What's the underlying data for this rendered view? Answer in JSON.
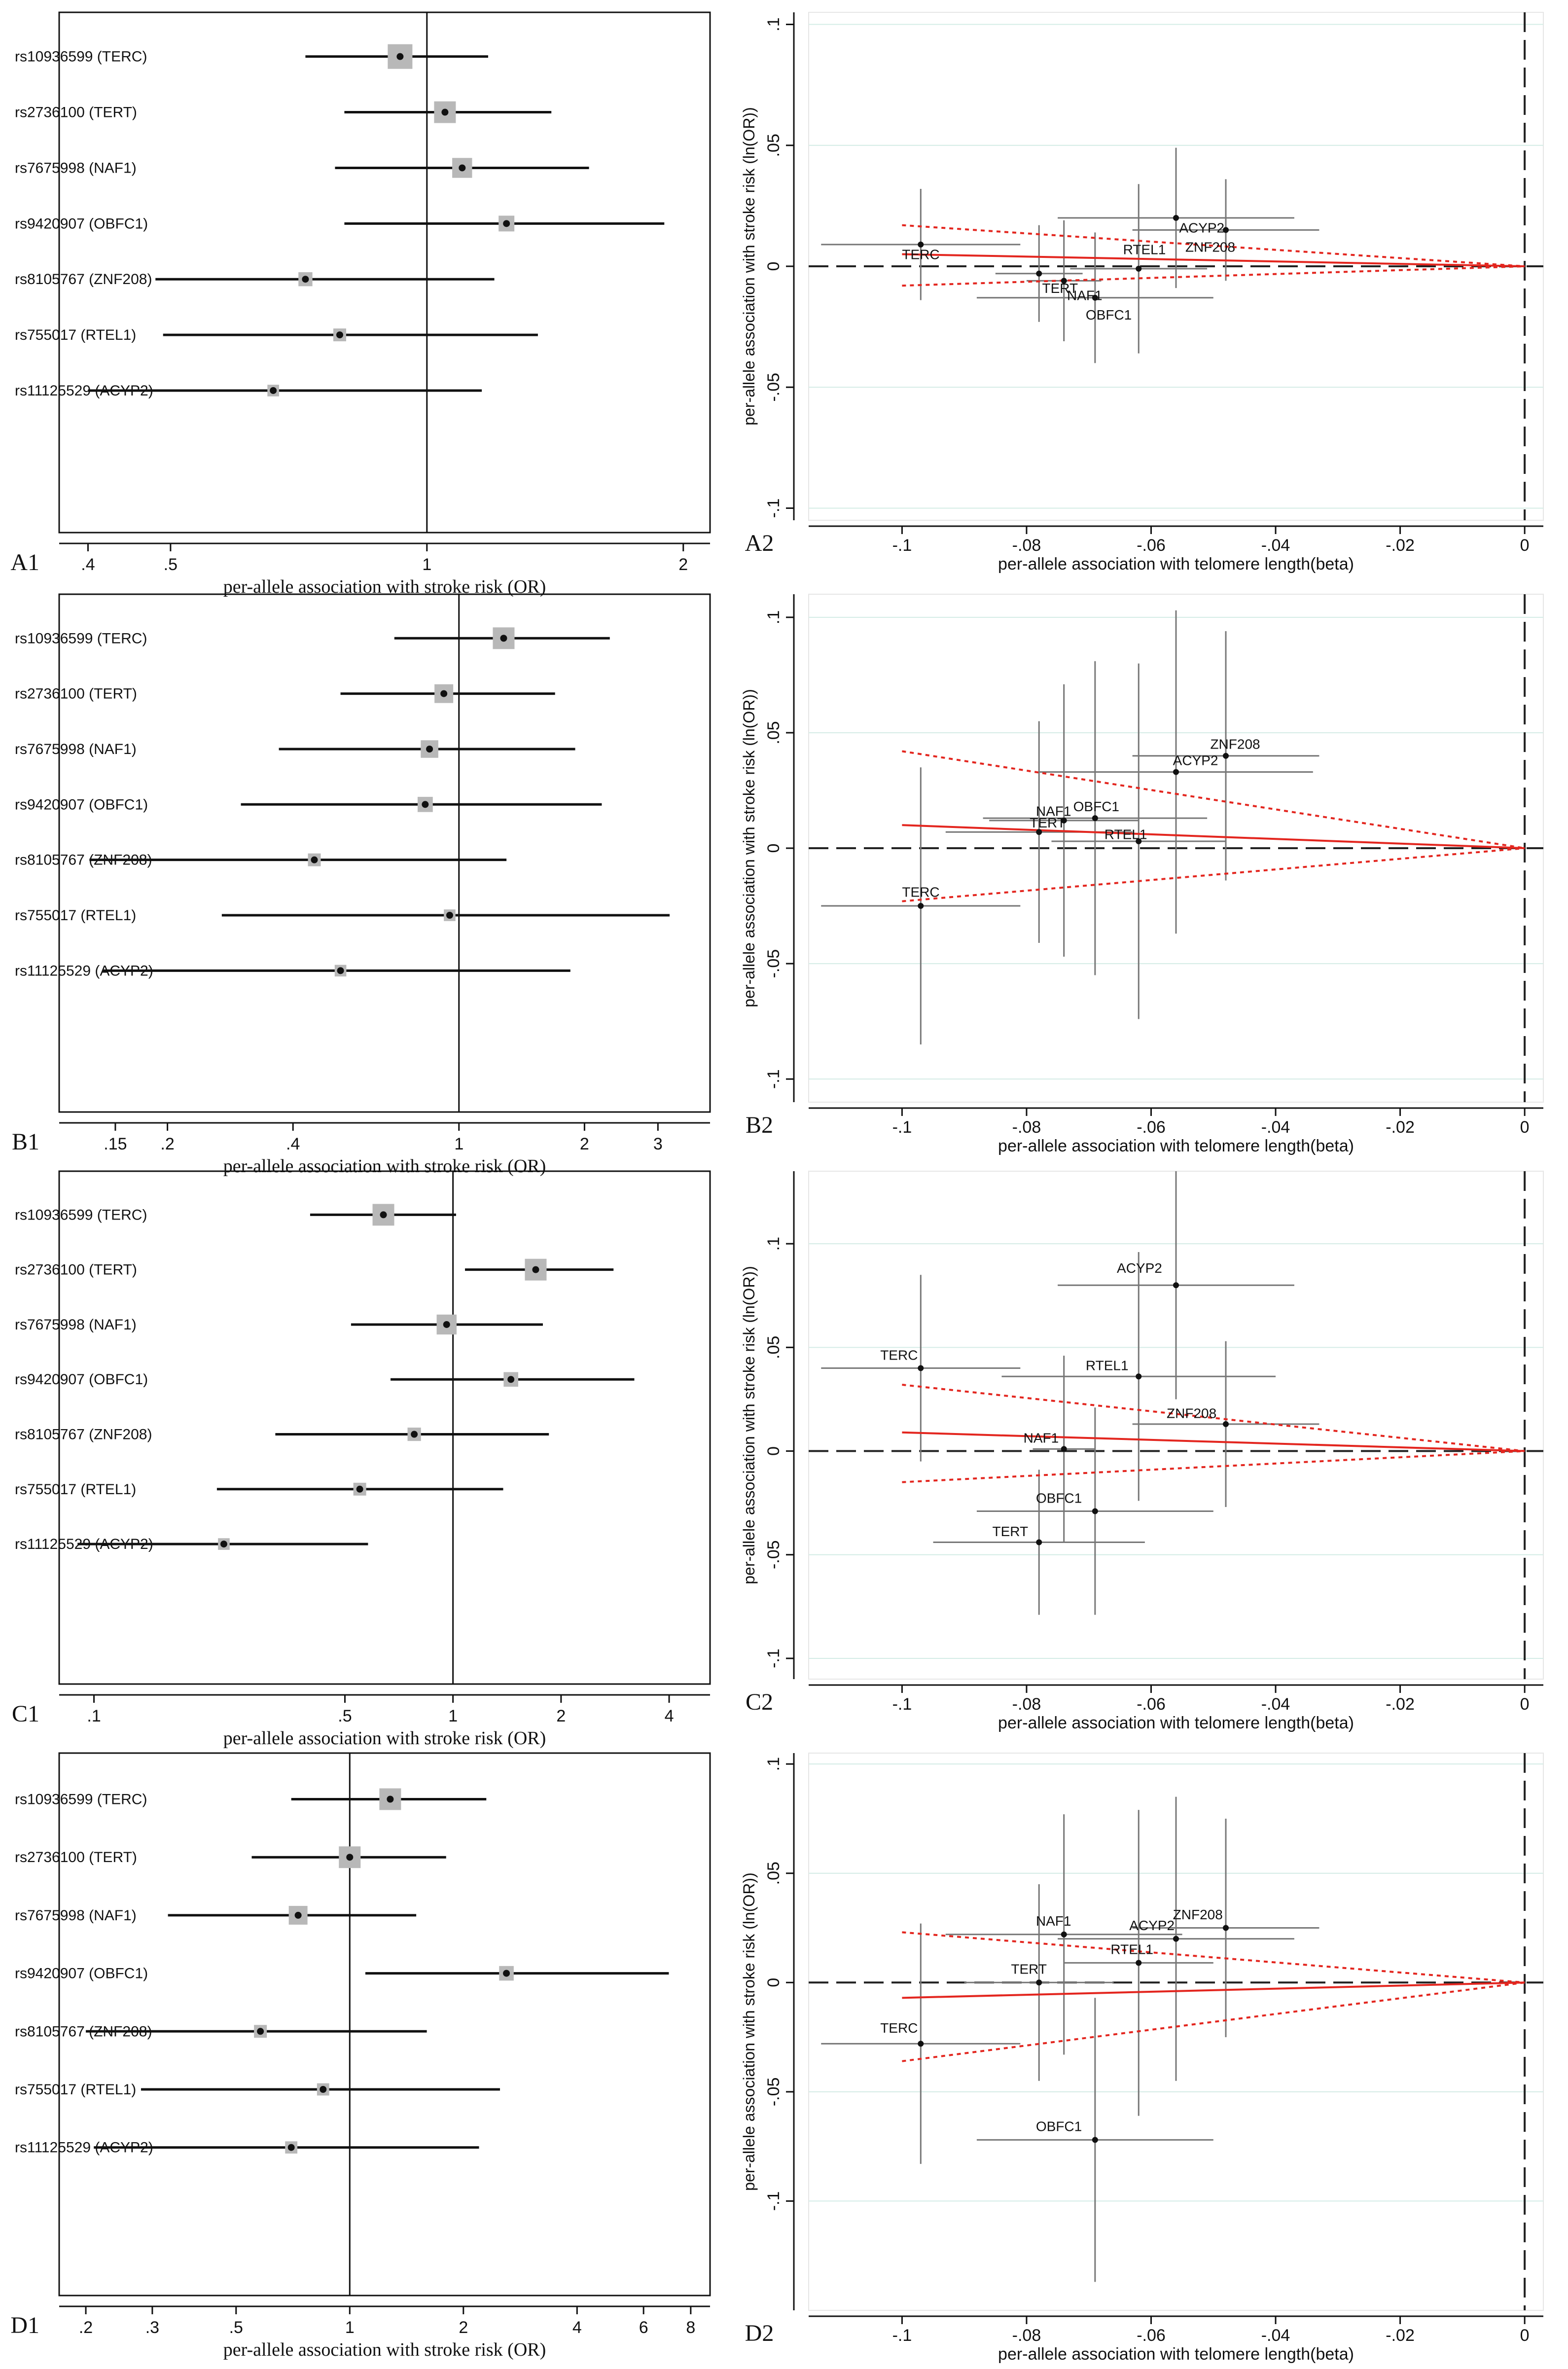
{
  "chart_data": [
    {
      "type": "forest",
      "panel": "A1",
      "xlabel": "per-allele association with stroke risk (OR)",
      "xscale": "log",
      "xlim": [
        0.37,
        2.15
      ],
      "ticks": [
        {
          "v": 0.4,
          "label": ".4"
        },
        {
          "v": 0.5,
          "label": ".5"
        },
        {
          "v": 1,
          "label": "1"
        },
        {
          "v": 2,
          "label": "2"
        }
      ],
      "rows": [
        {
          "snp": "rs10936599 (TERC)",
          "or": 0.93,
          "lo": 0.72,
          "hi": 1.18,
          "w": 3
        },
        {
          "snp": "rs2736100 (TERT)",
          "or": 1.05,
          "lo": 0.8,
          "hi": 1.4,
          "w": 2.5
        },
        {
          "snp": "rs7675998 (NAF1)",
          "or": 1.1,
          "lo": 0.78,
          "hi": 1.55,
          "w": 2.2
        },
        {
          "snp": "rs9420907 (OBFC1)",
          "or": 1.24,
          "lo": 0.8,
          "hi": 1.9,
          "w": 1.5
        },
        {
          "snp": "rs8105767 (ZNF208)",
          "or": 0.72,
          "lo": 0.48,
          "hi": 1.2,
          "w": 1.2
        },
        {
          "snp": "rs755017 (RTEL1)",
          "or": 0.79,
          "lo": 0.49,
          "hi": 1.35,
          "w": 1
        },
        {
          "snp": "rs11125529 (ACYP2)",
          "or": 0.66,
          "lo": 0.4,
          "hi": 1.16,
          "w": 0.8
        }
      ]
    },
    {
      "type": "scatter",
      "panel": "A2",
      "xlabel": "per-allele association with telomere length(beta)",
      "ylabel": "per-allele association with stroke risk (ln(OR))",
      "xlim": [
        -0.115,
        0.003
      ],
      "ylim": [
        -0.105,
        0.105
      ],
      "xticks": [
        {
          "v": -0.1,
          "label": "-.1"
        },
        {
          "v": -0.08,
          "label": "-.08"
        },
        {
          "v": -0.06,
          "label": "-.06"
        },
        {
          "v": -0.04,
          "label": "-.04"
        },
        {
          "v": -0.02,
          "label": "-.02"
        },
        {
          "v": 0,
          "label": "0"
        }
      ],
      "yticks": [
        {
          "v": -0.1,
          "label": "-.1"
        },
        {
          "v": -0.05,
          "label": "-.05"
        },
        {
          "v": 0,
          "label": "0"
        },
        {
          "v": 0.05,
          "label": ".05"
        },
        {
          "v": 0.1,
          "label": ".1"
        }
      ],
      "slope": -0.05,
      "ci_slope_lo": -0.17,
      "ci_slope_hi": 0.08,
      "points": [
        {
          "gene": "TERC",
          "x": -0.097,
          "y": 0.009,
          "xse": 0.016,
          "yse": 0.023,
          "lx": -0.1,
          "ly": 0.003
        },
        {
          "gene": "TERT",
          "x": -0.078,
          "y": -0.003,
          "xse": 0.007,
          "yse": 0.02,
          "lx": -0.0775,
          "ly": -0.011
        },
        {
          "gene": "NAF1",
          "x": -0.074,
          "y": -0.006,
          "xse": 0.006,
          "yse": 0.025,
          "lx": -0.0735,
          "ly": -0.014
        },
        {
          "gene": "OBFC1",
          "x": -0.069,
          "y": -0.013,
          "xse": 0.019,
          "yse": 0.027,
          "lx": -0.0705,
          "ly": -0.022
        },
        {
          "gene": "RTEL1",
          "x": -0.062,
          "y": -0.001,
          "xse": 0.011,
          "yse": 0.035,
          "lx": -0.0645,
          "ly": 0.005
        },
        {
          "gene": "ACYP2",
          "x": -0.056,
          "y": 0.02,
          "xse": 0.019,
          "yse": 0.029,
          "lx": -0.0555,
          "ly": 0.014
        },
        {
          "gene": "ZNF208",
          "x": -0.048,
          "y": 0.015,
          "xse": 0.015,
          "yse": 0.021,
          "lx": -0.0545,
          "ly": 0.006
        }
      ]
    },
    {
      "type": "forest",
      "panel": "B1",
      "xlabel": "per-allele association with stroke risk (OR)",
      "xscale": "log",
      "xlim": [
        0.11,
        4.0
      ],
      "ticks": [
        {
          "v": 0.15,
          "label": ".15"
        },
        {
          "v": 0.2,
          "label": ".2"
        },
        {
          "v": 0.4,
          "label": ".4"
        },
        {
          "v": 1,
          "label": "1"
        },
        {
          "v": 2,
          "label": "2"
        },
        {
          "v": 3,
          "label": "3"
        }
      ],
      "rows": [
        {
          "snp": "rs10936599 (TERC)",
          "or": 1.28,
          "lo": 0.7,
          "hi": 2.3,
          "w": 2.5
        },
        {
          "snp": "rs2736100 (TERT)",
          "or": 0.92,
          "lo": 0.52,
          "hi": 1.7,
          "w": 2
        },
        {
          "snp": "rs7675998 (NAF1)",
          "or": 0.85,
          "lo": 0.37,
          "hi": 1.9,
          "w": 1.8
        },
        {
          "snp": "rs9420907 (OBFC1)",
          "or": 0.83,
          "lo": 0.3,
          "hi": 2.2,
          "w": 1.4
        },
        {
          "snp": "rs8105767 (ZNF208)",
          "or": 0.45,
          "lo": 0.13,
          "hi": 1.3,
          "w": 1
        },
        {
          "snp": "rs755017 (RTEL1)",
          "or": 0.95,
          "lo": 0.27,
          "hi": 3.2,
          "w": 0.8
        },
        {
          "snp": "rs11125529 (ACYP2)",
          "or": 0.52,
          "lo": 0.14,
          "hi": 1.85,
          "w": 0.8
        }
      ]
    },
    {
      "type": "scatter",
      "panel": "B2",
      "xlabel": "per-allele association with telomere length(beta)",
      "ylabel": "per-allele association with stroke risk (ln(OR))",
      "xlim": [
        -0.115,
        0.003
      ],
      "ylim": [
        -0.11,
        0.11
      ],
      "xticks": [
        {
          "v": -0.1,
          "label": "-.1"
        },
        {
          "v": -0.08,
          "label": "-.08"
        },
        {
          "v": -0.06,
          "label": "-.06"
        },
        {
          "v": -0.04,
          "label": "-.04"
        },
        {
          "v": -0.02,
          "label": "-.02"
        },
        {
          "v": 0,
          "label": "0"
        }
      ],
      "yticks": [
        {
          "v": -0.1,
          "label": "-.1"
        },
        {
          "v": -0.05,
          "label": "-.05"
        },
        {
          "v": 0,
          "label": "0"
        },
        {
          "v": 0.05,
          "label": ".05"
        },
        {
          "v": 0.1,
          "label": ".1"
        }
      ],
      "slope": -0.1,
      "ci_slope_lo": -0.42,
      "ci_slope_hi": 0.23,
      "points": [
        {
          "gene": "TERC",
          "x": -0.097,
          "y": -0.025,
          "xse": 0.016,
          "yse": 0.06,
          "lx": -0.1,
          "ly": -0.021
        },
        {
          "gene": "TERT",
          "x": -0.078,
          "y": 0.007,
          "xse": 0.015,
          "yse": 0.048,
          "lx": -0.0795,
          "ly": 0.009
        },
        {
          "gene": "NAF1",
          "x": -0.074,
          "y": 0.012,
          "xse": 0.012,
          "yse": 0.059,
          "lx": -0.0785,
          "ly": 0.014
        },
        {
          "gene": "OBFC1",
          "x": -0.069,
          "y": 0.013,
          "xse": 0.018,
          "yse": 0.068,
          "lx": -0.0725,
          "ly": 0.016
        },
        {
          "gene": "RTEL1",
          "x": -0.062,
          "y": 0.003,
          "xse": 0.014,
          "yse": 0.077,
          "lx": -0.0675,
          "ly": 0.004
        },
        {
          "gene": "ACYP2",
          "x": -0.056,
          "y": 0.033,
          "xse": 0.022,
          "yse": 0.07,
          "lx": -0.0565,
          "ly": 0.036
        },
        {
          "gene": "ZNF208",
          "x": -0.048,
          "y": 0.04,
          "xse": 0.015,
          "yse": 0.054,
          "lx": -0.0505,
          "ly": 0.043
        }
      ]
    },
    {
      "type": "forest",
      "panel": "C1",
      "xlabel": "per-allele association with stroke risk (OR)",
      "xscale": "log",
      "xlim": [
        0.08,
        5.2
      ],
      "ticks": [
        {
          "v": 0.1,
          "label": ".1"
        },
        {
          "v": 0.5,
          "label": ".5"
        },
        {
          "v": 1,
          "label": "1"
        },
        {
          "v": 2,
          "label": "2"
        },
        {
          "v": 4,
          "label": "4"
        }
      ],
      "rows": [
        {
          "snp": "rs10936599 (TERC)",
          "or": 0.64,
          "lo": 0.4,
          "hi": 1.02,
          "w": 2.5
        },
        {
          "snp": "rs2736100 (TERT)",
          "or": 1.7,
          "lo": 1.08,
          "hi": 2.8,
          "w": 2.5
        },
        {
          "snp": "rs7675998 (NAF1)",
          "or": 0.96,
          "lo": 0.52,
          "hi": 1.78,
          "w": 2.2
        },
        {
          "snp": "rs9420907 (OBFC1)",
          "or": 1.45,
          "lo": 0.67,
          "hi": 3.2,
          "w": 1.3
        },
        {
          "snp": "rs8105767 (ZNF208)",
          "or": 0.78,
          "lo": 0.32,
          "hi": 1.85,
          "w": 1.1
        },
        {
          "snp": "rs755017 (RTEL1)",
          "or": 0.55,
          "lo": 0.22,
          "hi": 1.38,
          "w": 1
        },
        {
          "snp": "rs11125529 (ACYP2)",
          "or": 0.23,
          "lo": 0.09,
          "hi": 0.58,
          "w": 0.8
        }
      ]
    },
    {
      "type": "scatter",
      "panel": "C2",
      "xlabel": "per-allele association with telomere length(beta)",
      "ylabel": "per-allele association with stroke risk (ln(OR))",
      "xlim": [
        -0.115,
        0.003
      ],
      "ylim": [
        -0.11,
        0.135
      ],
      "xticks": [
        {
          "v": -0.1,
          "label": "-.1"
        },
        {
          "v": -0.08,
          "label": "-.08"
        },
        {
          "v": -0.06,
          "label": "-.06"
        },
        {
          "v": -0.04,
          "label": "-.04"
        },
        {
          "v": -0.02,
          "label": "-.02"
        },
        {
          "v": 0,
          "label": "0"
        }
      ],
      "yticks": [
        {
          "v": -0.1,
          "label": "-.1"
        },
        {
          "v": -0.05,
          "label": "-.05"
        },
        {
          "v": 0,
          "label": "0"
        },
        {
          "v": 0.05,
          "label": ".05"
        },
        {
          "v": 0.1,
          "label": ".1"
        }
      ],
      "slope": -0.09,
      "ci_slope_lo": -0.32,
      "ci_slope_hi": 0.15,
      "points": [
        {
          "gene": "TERC",
          "x": -0.097,
          "y": 0.04,
          "xse": 0.016,
          "yse": 0.045,
          "lx": -0.1035,
          "ly": 0.044
        },
        {
          "gene": "TERT",
          "x": -0.078,
          "y": -0.044,
          "xse": 0.017,
          "yse": 0.035,
          "lx": -0.0855,
          "ly": -0.041
        },
        {
          "gene": "NAF1",
          "x": -0.074,
          "y": 0.001,
          "xse": 0.005,
          "yse": 0.045,
          "lx": -0.0805,
          "ly": 0.004
        },
        {
          "gene": "OBFC1",
          "x": -0.069,
          "y": -0.029,
          "xse": 0.019,
          "yse": 0.05,
          "lx": -0.0785,
          "ly": -0.025
        },
        {
          "gene": "RTEL1",
          "x": -0.062,
          "y": 0.036,
          "xse": 0.022,
          "yse": 0.06,
          "lx": -0.0705,
          "ly": 0.039
        },
        {
          "gene": "ACYP2",
          "x": -0.056,
          "y": 0.08,
          "xse": 0.019,
          "yse": 0.055,
          "lx": -0.0655,
          "ly": 0.086
        },
        {
          "gene": "ZNF208",
          "x": -0.048,
          "y": 0.013,
          "xse": 0.015,
          "yse": 0.04,
          "lx": -0.0575,
          "ly": 0.016
        }
      ]
    },
    {
      "type": "forest",
      "panel": "D1",
      "xlabel": "per-allele association with stroke risk (OR)",
      "xscale": "log",
      "xlim": [
        0.17,
        9.0
      ],
      "ticks": [
        {
          "v": 0.2,
          "label": ".2"
        },
        {
          "v": 0.3,
          "label": ".3"
        },
        {
          "v": 0.5,
          "label": ".5"
        },
        {
          "v": 1,
          "label": "1"
        },
        {
          "v": 2,
          "label": "2"
        },
        {
          "v": 4,
          "label": "4"
        },
        {
          "v": 6,
          "label": "6"
        },
        {
          "v": 8,
          "label": "8"
        }
      ],
      "rows": [
        {
          "snp": "rs10936599 (TERC)",
          "or": 1.28,
          "lo": 0.7,
          "hi": 2.3,
          "w": 2.5
        },
        {
          "snp": "rs2736100 (TERT)",
          "or": 1.0,
          "lo": 0.55,
          "hi": 1.8,
          "w": 2.5
        },
        {
          "snp": "rs7675998 (NAF1)",
          "or": 0.73,
          "lo": 0.33,
          "hi": 1.5,
          "w": 2
        },
        {
          "snp": "rs9420907 (OBFC1)",
          "or": 2.6,
          "lo": 1.1,
          "hi": 7.0,
          "w": 1.3
        },
        {
          "snp": "rs8105767 (ZNF208)",
          "or": 0.58,
          "lo": 0.2,
          "hi": 1.6,
          "w": 1
        },
        {
          "snp": "rs755017 (RTEL1)",
          "or": 0.85,
          "lo": 0.28,
          "hi": 2.5,
          "w": 0.9
        },
        {
          "snp": "rs11125529 (ACYP2)",
          "or": 0.7,
          "lo": 0.21,
          "hi": 2.2,
          "w": 0.9
        }
      ]
    },
    {
      "type": "scatter",
      "panel": "D2",
      "xlabel": "per-allele association with telomere length(beta)",
      "ylabel": "per-allele association with stroke risk (ln(OR))",
      "xlim": [
        -0.115,
        0.003
      ],
      "ylim": [
        -0.15,
        0.105
      ],
      "xticks": [
        {
          "v": -0.1,
          "label": "-.1"
        },
        {
          "v": -0.08,
          "label": "-.08"
        },
        {
          "v": -0.06,
          "label": "-.06"
        },
        {
          "v": -0.04,
          "label": "-.04"
        },
        {
          "v": -0.02,
          "label": "-.02"
        },
        {
          "v": 0,
          "label": "0"
        }
      ],
      "yticks": [
        {
          "v": -0.1,
          "label": "-.1"
        },
        {
          "v": -0.05,
          "label": "-.05"
        },
        {
          "v": 0,
          "label": "0"
        },
        {
          "v": 0.05,
          "label": ".05"
        },
        {
          "v": 0.1,
          "label": ".1"
        }
      ],
      "slope": 0.07,
      "ci_slope_lo": -0.23,
      "ci_slope_hi": 0.36,
      "points": [
        {
          "gene": "TERC",
          "x": -0.097,
          "y": -0.028,
          "xse": 0.016,
          "yse": 0.055,
          "lx": -0.1035,
          "ly": -0.023
        },
        {
          "gene": "TERT",
          "x": -0.078,
          "y": 0.0,
          "xse": 0.012,
          "yse": 0.045,
          "lx": -0.0825,
          "ly": 0.004
        },
        {
          "gene": "NAF1",
          "x": -0.074,
          "y": 0.022,
          "xse": 0.019,
          "yse": 0.055,
          "lx": -0.0785,
          "ly": 0.026
        },
        {
          "gene": "OBFC1",
          "x": -0.069,
          "y": -0.072,
          "xse": 0.019,
          "yse": 0.065,
          "lx": -0.0785,
          "ly": -0.068
        },
        {
          "gene": "RTEL1",
          "x": -0.062,
          "y": 0.009,
          "xse": 0.012,
          "yse": 0.07,
          "lx": -0.0665,
          "ly": 0.013
        },
        {
          "gene": "ACYP2",
          "x": -0.056,
          "y": 0.02,
          "xse": 0.019,
          "yse": 0.065,
          "lx": -0.0635,
          "ly": 0.024
        },
        {
          "gene": "ZNF208",
          "x": -0.048,
          "y": 0.025,
          "xse": 0.015,
          "yse": 0.05,
          "lx": -0.0565,
          "ly": 0.029
        }
      ]
    }
  ]
}
